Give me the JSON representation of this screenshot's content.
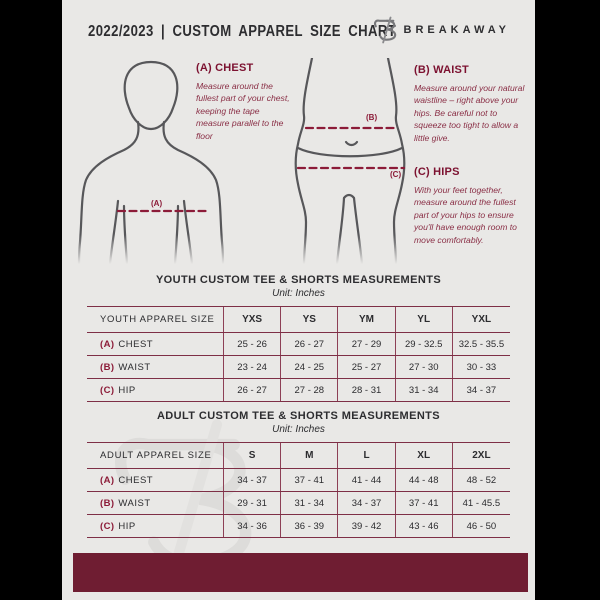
{
  "header": {
    "title": "2022/2023 | CUSTOM APPAREL SIZE CHART",
    "brand": "BREAKAWAY",
    "logo_icon": "breakaway-b-monogram"
  },
  "guide": {
    "chest": {
      "heading": "(A) CHEST",
      "body": "Measure around the fullest part of your chest, keeping the tape measure parallel to the floor"
    },
    "waist": {
      "heading": "(B) WAIST",
      "body": "Measure around your natural waistline – right above your hips. Be careful not to squeeze too tight to allow a little give."
    },
    "hips": {
      "heading": "(C) HIPS",
      "body": "With your feet together, measure around the fullest part of your hips to ensure you'll have enough room to move comfortably."
    },
    "labels": {
      "chest": "(A)",
      "waist": "(B)",
      "hips": "(C)"
    }
  },
  "tables": [
    {
      "title": "YOUTH CUSTOM TEE & SHORTS MEASUREMENTS",
      "unit": "Unit: Inches",
      "header_row": [
        "YOUTH APPAREL SIZE",
        "YXS",
        "YS",
        "YM",
        "YL",
        "YXL"
      ],
      "rows": [
        {
          "label_prefix": "(A)",
          "label": "CHEST",
          "values": [
            "25 - 26",
            "26 - 27",
            "27 - 29",
            "29 - 32.5",
            "32.5 - 35.5"
          ]
        },
        {
          "label_prefix": "(B)",
          "label": "WAIST",
          "values": [
            "23 - 24",
            "24 - 25",
            "25 - 27",
            "27 - 30",
            "30 - 33"
          ]
        },
        {
          "label_prefix": "(C)",
          "label": "HIP",
          "values": [
            "26 - 27",
            "27 - 28",
            "28 - 31",
            "31 - 34",
            "34 - 37"
          ]
        }
      ]
    },
    {
      "title": "ADULT CUSTOM TEE & SHORTS MEASUREMENTS",
      "unit": "Unit: Inches",
      "header_row": [
        "ADULT APPAREL SIZE",
        "S",
        "M",
        "L",
        "XL",
        "2XL"
      ],
      "rows": [
        {
          "label_prefix": "(A)",
          "label": "CHEST",
          "values": [
            "34 - 37",
            "37 - 41",
            "41 - 44",
            "44 - 48",
            "48 - 52"
          ]
        },
        {
          "label_prefix": "(B)",
          "label": "WAIST",
          "values": [
            "29 - 31",
            "31 - 34",
            "34 - 37",
            "37 - 41",
            "41 - 45.5"
          ]
        },
        {
          "label_prefix": "(C)",
          "label": "HIP",
          "values": [
            "34 - 36",
            "36 - 39",
            "39 - 42",
            "43 - 46",
            "46 - 50"
          ]
        }
      ]
    }
  ],
  "colors": {
    "page_background": "#e9e8e6",
    "side_background": "#000000",
    "maroon_accent": "#6f1d32",
    "maroon_heading": "#7c1130",
    "maroon_label": "#8c1b38",
    "description_text": "#8a2f46",
    "table_border": "#7e2f46",
    "body_text": "#2d2d30",
    "figure_outline": "#57575a"
  }
}
